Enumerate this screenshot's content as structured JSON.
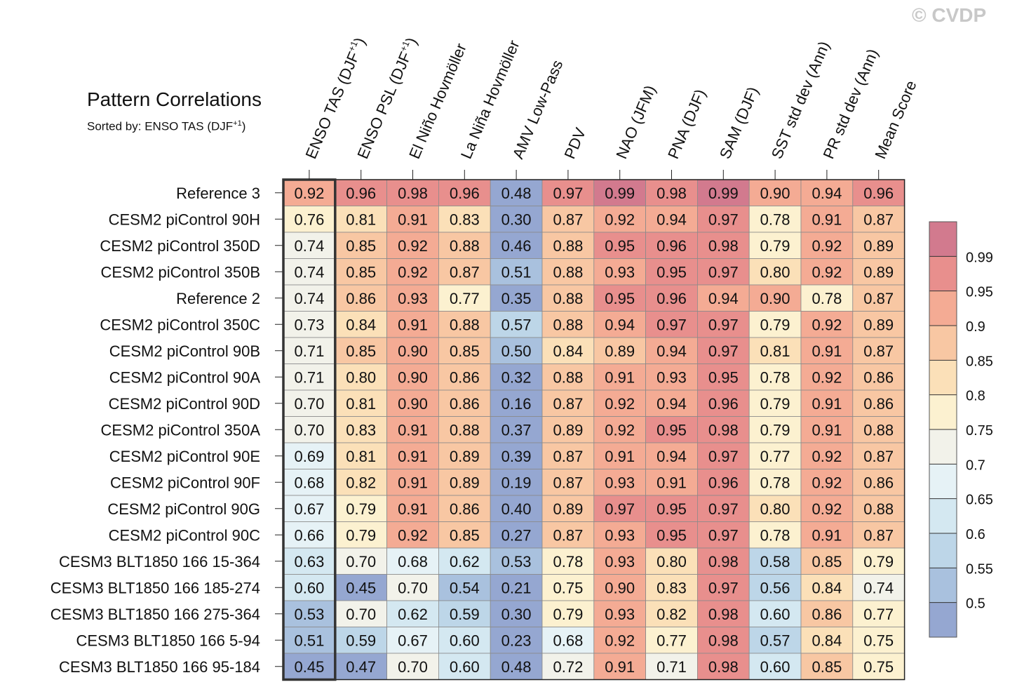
{
  "watermark": "© CVDP",
  "chart_data": {
    "type": "heatmap",
    "title": "Pattern Correlations",
    "subtitle_prefix": "Sorted by: ",
    "subtitle_main": "ENSO TAS (DJF",
    "subtitle_sup": "+1",
    "subtitle_suffix": ")",
    "columns": [
      {
        "label": "ENSO TAS (DJF",
        "sup": "+1",
        "suffix": ")"
      },
      {
        "label": "ENSO PSL (DJF",
        "sup": "+1",
        "suffix": ")"
      },
      {
        "label": "El Niño Hovmöller"
      },
      {
        "label": "La Niña Hovmöller"
      },
      {
        "label": "AMV Low-Pass"
      },
      {
        "label": "PDV"
      },
      {
        "label": "NAO (JFM)"
      },
      {
        "label": "PNA (DJF)"
      },
      {
        "label": "SAM (DJF)"
      },
      {
        "label": "SST std dev (Ann)"
      },
      {
        "label": "PR std dev (Ann)"
      },
      {
        "label": "Mean Score"
      }
    ],
    "rows": [
      {
        "label": "Reference 3",
        "values": [
          "0.92",
          "0.96",
          "0.98",
          "0.96",
          "0.48",
          "0.97",
          "0.99",
          "0.98",
          "0.99",
          "0.90",
          "0.94",
          "0.96"
        ]
      },
      {
        "label": "CESM2 piControl 90H",
        "values": [
          "0.76",
          "0.81",
          "0.91",
          "0.83",
          "0.30",
          "0.87",
          "0.92",
          "0.94",
          "0.97",
          "0.78",
          "0.91",
          "0.87"
        ]
      },
      {
        "label": "CESM2 piControl 350D",
        "values": [
          "0.74",
          "0.85",
          "0.92",
          "0.88",
          "0.46",
          "0.88",
          "0.95",
          "0.96",
          "0.98",
          "0.79",
          "0.92",
          "0.89"
        ]
      },
      {
        "label": "CESM2 piControl 350B",
        "values": [
          "0.74",
          "0.85",
          "0.92",
          "0.87",
          "0.51",
          "0.88",
          "0.93",
          "0.95",
          "0.97",
          "0.80",
          "0.92",
          "0.89"
        ]
      },
      {
        "label": "Reference 2",
        "values": [
          "0.74",
          "0.86",
          "0.93",
          "0.77",
          "0.35",
          "0.88",
          "0.95",
          "0.96",
          "0.94",
          "0.90",
          "0.78",
          "0.87"
        ]
      },
      {
        "label": "CESM2 piControl 350C",
        "values": [
          "0.73",
          "0.84",
          "0.91",
          "0.88",
          "0.57",
          "0.88",
          "0.94",
          "0.97",
          "0.97",
          "0.79",
          "0.92",
          "0.89"
        ]
      },
      {
        "label": "CESM2 piControl 90B",
        "values": [
          "0.71",
          "0.85",
          "0.90",
          "0.85",
          "0.50",
          "0.84",
          "0.89",
          "0.94",
          "0.97",
          "0.81",
          "0.91",
          "0.87"
        ]
      },
      {
        "label": "CESM2 piControl 90A",
        "values": [
          "0.71",
          "0.80",
          "0.90",
          "0.86",
          "0.32",
          "0.88",
          "0.91",
          "0.93",
          "0.95",
          "0.78",
          "0.92",
          "0.86"
        ]
      },
      {
        "label": "CESM2 piControl 90D",
        "values": [
          "0.70",
          "0.81",
          "0.90",
          "0.86",
          "0.16",
          "0.87",
          "0.92",
          "0.94",
          "0.96",
          "0.79",
          "0.91",
          "0.86"
        ]
      },
      {
        "label": "CESM2 piControl 350A",
        "values": [
          "0.70",
          "0.83",
          "0.91",
          "0.88",
          "0.37",
          "0.89",
          "0.92",
          "0.95",
          "0.98",
          "0.79",
          "0.91",
          "0.88"
        ]
      },
      {
        "label": "CESM2 piControl 90E",
        "values": [
          "0.69",
          "0.81",
          "0.91",
          "0.89",
          "0.39",
          "0.87",
          "0.91",
          "0.94",
          "0.97",
          "0.77",
          "0.92",
          "0.87"
        ]
      },
      {
        "label": "CESM2 piControl 90F",
        "values": [
          "0.68",
          "0.82",
          "0.91",
          "0.89",
          "0.19",
          "0.87",
          "0.93",
          "0.91",
          "0.96",
          "0.78",
          "0.92",
          "0.86"
        ]
      },
      {
        "label": "CESM2 piControl 90G",
        "values": [
          "0.67",
          "0.79",
          "0.91",
          "0.86",
          "0.40",
          "0.89",
          "0.97",
          "0.95",
          "0.97",
          "0.80",
          "0.92",
          "0.88"
        ]
      },
      {
        "label": "CESM2 piControl 90C",
        "values": [
          "0.66",
          "0.79",
          "0.92",
          "0.85",
          "0.27",
          "0.87",
          "0.93",
          "0.95",
          "0.97",
          "0.78",
          "0.91",
          "0.87"
        ]
      },
      {
        "label": "CESM3 BLT1850 166 15-364",
        "values": [
          "0.63",
          "0.70",
          "0.68",
          "0.62",
          "0.53",
          "0.78",
          "0.93",
          "0.80",
          "0.98",
          "0.58",
          "0.85",
          "0.79"
        ]
      },
      {
        "label": "CESM3 BLT1850 166 185-274",
        "values": [
          "0.60",
          "0.45",
          "0.70",
          "0.54",
          "0.21",
          "0.75",
          "0.90",
          "0.83",
          "0.97",
          "0.56",
          "0.84",
          "0.74"
        ]
      },
      {
        "label": "CESM3 BLT1850 166 275-364",
        "values": [
          "0.53",
          "0.70",
          "0.62",
          "0.59",
          "0.30",
          "0.79",
          "0.93",
          "0.82",
          "0.98",
          "0.60",
          "0.86",
          "0.77"
        ]
      },
      {
        "label": "CESM3 BLT1850 166 5-94",
        "values": [
          "0.51",
          "0.59",
          "0.67",
          "0.60",
          "0.23",
          "0.68",
          "0.92",
          "0.77",
          "0.98",
          "0.57",
          "0.84",
          "0.75"
        ]
      },
      {
        "label": "CESM3 BLT1850 166 95-184",
        "values": [
          "0.45",
          "0.47",
          "0.70",
          "0.60",
          "0.48",
          "0.72",
          "0.91",
          "0.71",
          "0.98",
          "0.60",
          "0.85",
          "0.75"
        ]
      }
    ],
    "sorted_column": 0,
    "colorbar": {
      "levels": [
        "0.5",
        "0.55",
        "0.6",
        "0.65",
        "0.7",
        "0.75",
        "0.8",
        "0.85",
        "0.9",
        "0.95",
        "0.99"
      ],
      "colors": [
        "#95a7d1",
        "#a9c1de",
        "#bdd6e8",
        "#d4e8f1",
        "#e6f2f6",
        "#f2f2ea",
        "#fcf1d0",
        "#fbe0b8",
        "#f8c7a3",
        "#f4ab94",
        "#e88f8d",
        "#d27a8e"
      ],
      "thresholds": [
        0.5,
        0.55,
        0.6,
        0.65,
        0.7,
        0.75,
        0.8,
        0.85,
        0.9,
        0.95,
        0.99
      ]
    }
  }
}
